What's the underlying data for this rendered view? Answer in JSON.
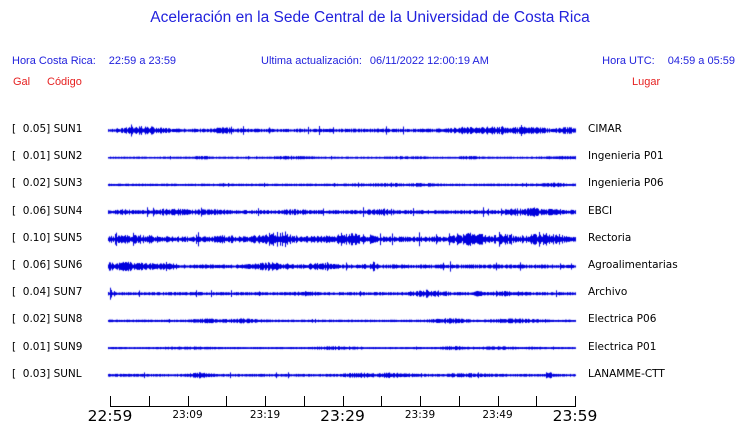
{
  "title": "Aceleración en la Sede Central de la Universidad de Costa Rica",
  "header": {
    "hora_cr_label": "Hora Costa Rica:",
    "hora_cr_value": "22:59 a 23:59",
    "actualizacion_label": "Ultima actualización:",
    "actualizacion_value": "06/11/2022 12:00:19 AM",
    "hora_utc_label": "Hora UTC:",
    "hora_utc_value": "04:59 a 05:59"
  },
  "columns": {
    "gal": "Gal",
    "codigo": "Código",
    "lugar": "Lugar"
  },
  "colors": {
    "header_blue": "#2222dd",
    "trace_blue": "#0000dd",
    "label_red": "#e62222",
    "axis_black": "#000000"
  },
  "chart_data": {
    "type": "line",
    "subtype": "seismogram_multitrace",
    "unit": "Gal",
    "x_axis": {
      "start": "22:59",
      "end": "23:59",
      "tick_labels": [
        "22:59",
        "23:09",
        "23:19",
        "23:29",
        "23:39",
        "23:49",
        "23:59"
      ],
      "minor_tick_interval_minutes": 5,
      "grid": false
    },
    "stations": [
      {
        "max_gal": "0.05",
        "code": "SUN1",
        "location": "CIMAR"
      },
      {
        "max_gal": "0.01",
        "code": "SUN2",
        "location": "Ingenieria P01"
      },
      {
        "max_gal": "0.02",
        "code": "SUN3",
        "location": "Ingenieria P06"
      },
      {
        "max_gal": "0.06",
        "code": "SUN4",
        "location": "EBCI"
      },
      {
        "max_gal": "0.10",
        "code": "SUN5",
        "location": "Rectoria"
      },
      {
        "max_gal": "0.06",
        "code": "SUN6",
        "location": "Agroalimentarias"
      },
      {
        "max_gal": "0.04",
        "code": "SUN7",
        "location": "Archivo"
      },
      {
        "max_gal": "0.02",
        "code": "SUN8",
        "location": "Electrica P06"
      },
      {
        "max_gal": "0.01",
        "code": "SUN9",
        "location": "Electrica P01"
      },
      {
        "max_gal": "0.03",
        "code": "SUNL",
        "location": "LANAMME-CTT"
      }
    ]
  }
}
